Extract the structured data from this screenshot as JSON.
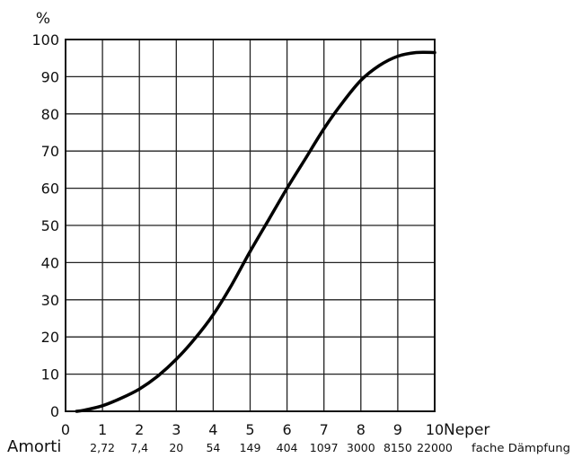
{
  "chart_data": {
    "type": "line",
    "y_unit_label": "%",
    "x_unit_label": "Neper",
    "secondary_axis_prefix": "Amorti",
    "secondary_axis_suffix": "fache Dämpfung",
    "xlim": [
      0,
      10
    ],
    "ylim": [
      0,
      100
    ],
    "grid": true,
    "x_ticks": [
      "0",
      "1",
      "2",
      "3",
      "4",
      "5",
      "6",
      "7",
      "8",
      "9",
      "10"
    ],
    "y_ticks": [
      "0",
      "10",
      "20",
      "30",
      "40",
      "50",
      "60",
      "70",
      "80",
      "90",
      "100"
    ],
    "secondary_ticks": [
      "2,72",
      "7,4",
      "20",
      "54",
      "149",
      "404",
      "1097",
      "3000",
      "8150",
      "22000"
    ],
    "series": [
      {
        "x": [
          0.3,
          0.5,
          1,
          1.5,
          2,
          2.5,
          3,
          3.5,
          4,
          4.5,
          5,
          5.5,
          6,
          6.5,
          7,
          7.5,
          8,
          8.5,
          9,
          9.5,
          10
        ],
        "y": [
          0,
          0.3,
          1.5,
          3.5,
          6,
          9.5,
          14,
          19.5,
          26,
          34,
          43,
          51.5,
          60,
          68,
          76,
          83,
          89,
          93,
          95.5,
          96.5,
          96.5
        ]
      }
    ]
  }
}
